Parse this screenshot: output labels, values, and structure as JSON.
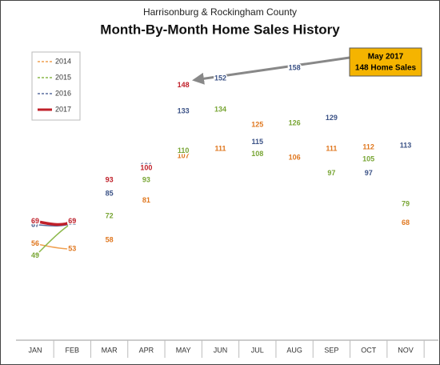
{
  "chart_data": {
    "type": "line",
    "title": "Month-By-Month Home Sales History",
    "subtitle": "Harrisonburg & Rockingham County",
    "categories": [
      "JAN",
      "FEB",
      "MAR",
      "APR",
      "MAY",
      "JUN",
      "JUL",
      "AUG",
      "SEP",
      "OCT",
      "NOV"
    ],
    "series": [
      {
        "name": "2014",
        "color": "#f0a050",
        "label_color": "#e07820",
        "values": [
          56,
          53,
          58,
          81,
          107,
          111,
          125,
          106,
          111,
          112,
          68
        ]
      },
      {
        "name": "2015",
        "color": "#8cb84a",
        "label_color": "#78a534",
        "values": [
          49,
          68,
          72,
          93,
          110,
          134,
          108,
          126,
          97,
          105,
          79
        ]
      },
      {
        "name": "2016",
        "color": "#5a6fa0",
        "label_color": "#3b5286",
        "values": [
          67,
          68,
          85,
          101,
          133,
          152,
          115,
          158,
          129,
          97,
          113
        ]
      },
      {
        "name": "2017",
        "color": "#c0202a",
        "label_color": "#c0202a",
        "values": [
          69,
          69,
          93,
          100,
          148,
          null,
          null,
          null,
          null,
          null,
          null
        ]
      }
    ],
    "ylim": [
      0,
      180
    ],
    "legend": "top-left",
    "annotations": [
      "May 2017",
      "148 Home Sales"
    ]
  }
}
